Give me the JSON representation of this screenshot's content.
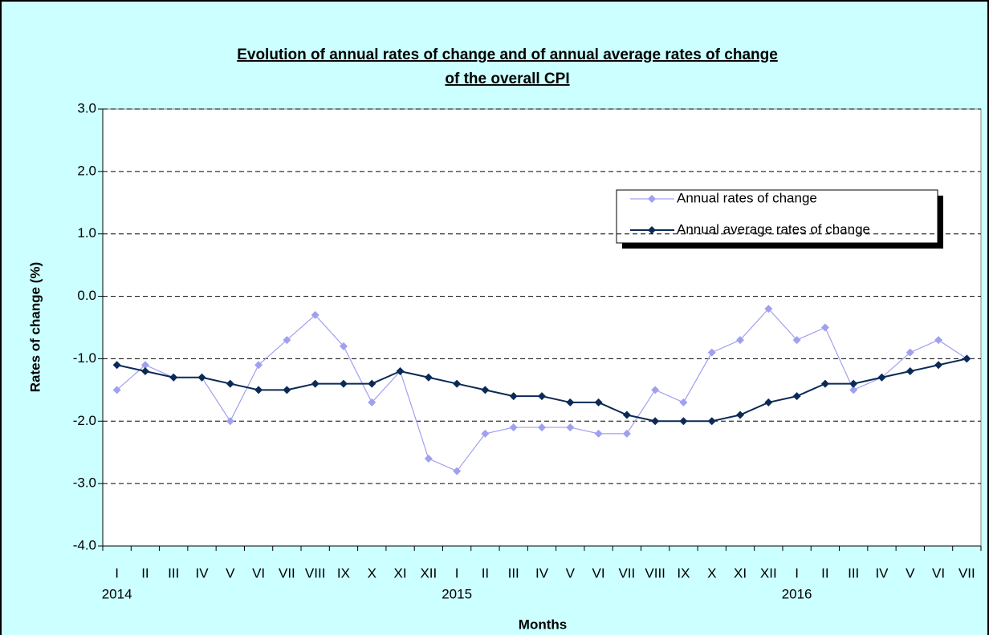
{
  "chart_data": {
    "type": "line",
    "title": [
      "Evolution of annual rates of change and of annual average rates of change",
      "of  the overall CPI"
    ],
    "y_label": "Rates of change (%)",
    "x_label": "Months",
    "categories": [
      "I",
      "II",
      "III",
      "IV",
      "V",
      "VI",
      "VII",
      "VIII",
      "IX",
      "X",
      "XI",
      "XII",
      "I",
      "II",
      "III",
      "IV",
      "V",
      "VI",
      "VII",
      "VIII",
      "IX",
      "X",
      "XI",
      "XII",
      "I",
      "II",
      "III",
      "IV",
      "V",
      "VI",
      "VII"
    ],
    "year_labels": [
      "2014",
      null,
      null,
      null,
      null,
      null,
      null,
      null,
      null,
      null,
      null,
      null,
      "2015",
      null,
      null,
      null,
      null,
      null,
      null,
      null,
      null,
      null,
      null,
      null,
      "2016",
      null,
      null,
      null,
      null,
      null,
      null
    ],
    "series": [
      {
        "name": "Annual rates of change",
        "color": "#a0a0f0",
        "values": [
          -1.5,
          -1.1,
          -1.3,
          -1.3,
          -2.0,
          -1.1,
          -0.7,
          -0.3,
          -0.8,
          -1.7,
          -1.2,
          -2.6,
          -2.8,
          -2.2,
          -2.1,
          -2.1,
          -2.1,
          -2.2,
          -2.2,
          -1.5,
          -1.7,
          -0.9,
          -0.7,
          -0.2,
          -0.7,
          -0.5,
          -1.5,
          -1.3,
          -0.9,
          -0.7,
          -1.0
        ]
      },
      {
        "name": "Annual average rates of change",
        "color": "#0b2a55",
        "values": [
          -1.1,
          -1.2,
          -1.3,
          -1.3,
          -1.4,
          -1.5,
          -1.5,
          -1.4,
          -1.4,
          -1.4,
          -1.2,
          -1.3,
          -1.4,
          -1.5,
          -1.6,
          -1.6,
          -1.7,
          -1.7,
          -1.9,
          -2.0,
          -2.0,
          -2.0,
          -1.9,
          -1.7,
          -1.6,
          -1.4,
          -1.4,
          -1.3,
          -1.2,
          -1.1,
          -1.0
        ]
      }
    ],
    "ylim": [
      -4,
      3
    ],
    "yticks": [
      {
        "value": -4,
        "label": "-4.0"
      },
      {
        "value": -3,
        "label": "-3.0"
      },
      {
        "value": -2,
        "label": "-2.0"
      },
      {
        "value": -1,
        "label": "-1.0"
      },
      {
        "value": 0,
        "label": "0.0"
      },
      {
        "value": 1,
        "label": "1.0"
      },
      {
        "value": 2,
        "label": "2.0"
      },
      {
        "value": 3,
        "label": "3.0"
      }
    ],
    "grid": true
  }
}
